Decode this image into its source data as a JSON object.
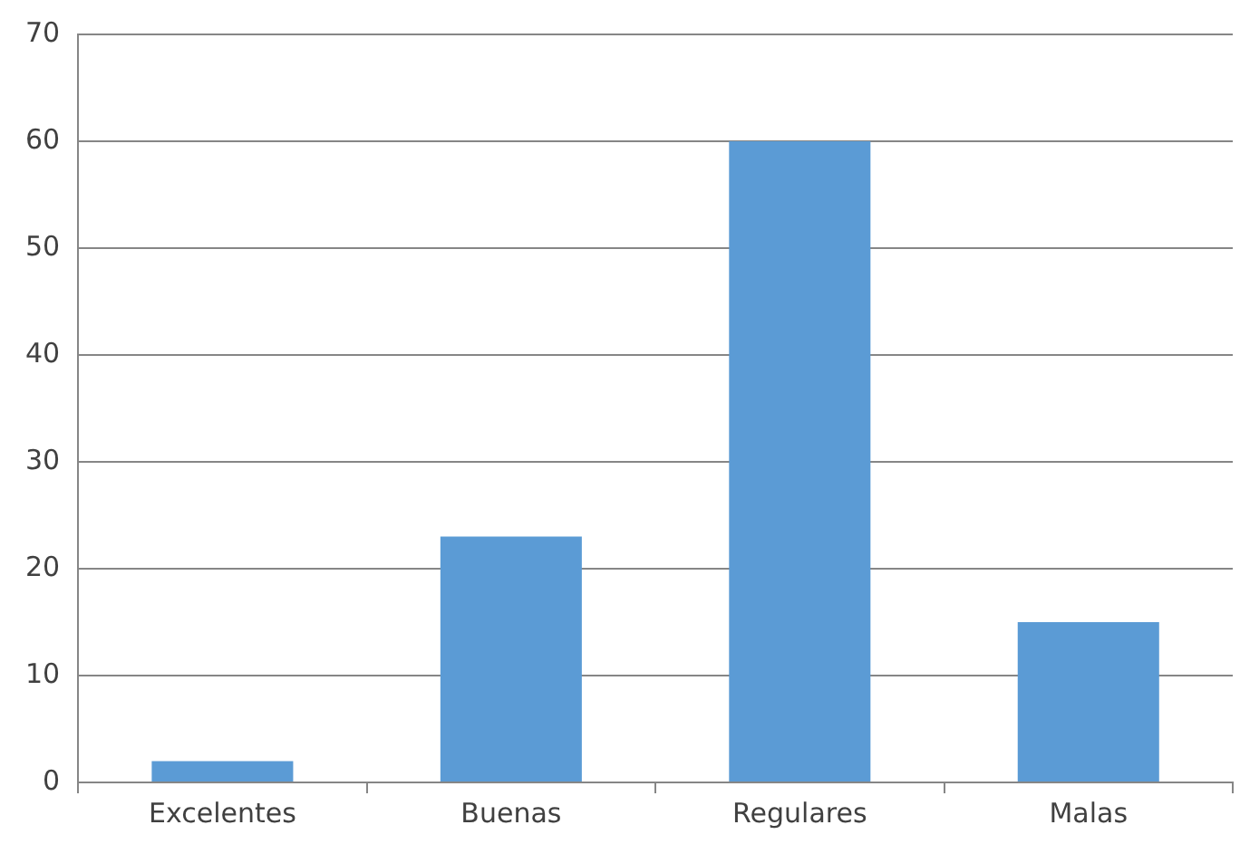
{
  "chart_data": {
    "type": "bar",
    "categories": [
      "Excelentes",
      "Buenas",
      "Regulares",
      "Malas"
    ],
    "values": [
      2,
      23,
      60,
      15
    ],
    "color": "#5b9bd5",
    "ylim": [
      0,
      70
    ],
    "yticks": [
      0,
      10,
      20,
      30,
      40,
      50,
      60,
      70
    ],
    "grid": "y"
  }
}
